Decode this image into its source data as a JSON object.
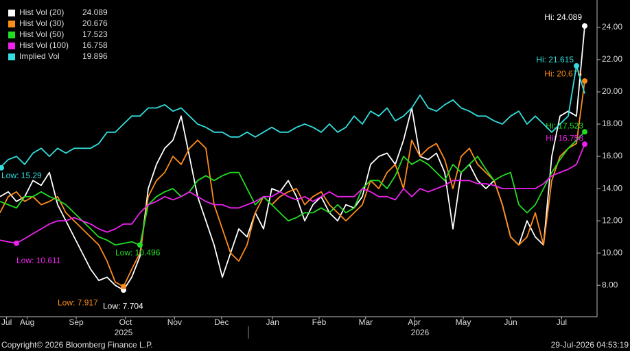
{
  "chart_data": {
    "type": "line",
    "xlim": [
      0,
      72.5
    ],
    "ylim": [
      6.05,
      25.7
    ],
    "yticks": [
      {
        "value": 8,
        "label": "8.00"
      },
      {
        "value": 10,
        "label": "10.00"
      },
      {
        "value": 12,
        "label": "12.00"
      },
      {
        "value": 14,
        "label": "14.00"
      },
      {
        "value": 16,
        "label": "16.00"
      },
      {
        "value": 18,
        "label": "18.00"
      },
      {
        "value": 20,
        "label": "20.00"
      },
      {
        "value": 22,
        "label": "22.00"
      },
      {
        "value": 24,
        "label": "24.00"
      }
    ],
    "xticks": [
      {
        "value": 0.8,
        "label": "Jul"
      },
      {
        "value": 3.3,
        "label": "Aug"
      },
      {
        "value": 9.25,
        "label": "Sep"
      },
      {
        "value": 15.25,
        "label": "Oct"
      },
      {
        "value": 21.2,
        "label": "Nov"
      },
      {
        "value": 26.9,
        "label": "Dec"
      },
      {
        "value": 33.1,
        "label": "Jan"
      },
      {
        "value": 38.75,
        "label": "Feb"
      },
      {
        "value": 44.4,
        "label": "Mar"
      },
      {
        "value": 50.3,
        "label": "Apr"
      },
      {
        "value": 56.25,
        "label": "May"
      },
      {
        "value": 62,
        "label": "Jun"
      },
      {
        "value": 68.2,
        "label": "Jul"
      }
    ],
    "year_labels": [
      {
        "value": 15,
        "label": "2025"
      },
      {
        "value": 51,
        "label": "2026"
      }
    ],
    "grid": false,
    "series": [
      {
        "name": "Hist Vol (20)",
        "color": "#ffffff",
        "hi_label": "Hi: 24.089",
        "lo_label": "Low: 7.704",
        "values": [
          13.5,
          13.8,
          13.2,
          13.5,
          14.5,
          14.2,
          15.0,
          13.0,
          12.0,
          11.0,
          10.0,
          9.0,
          8.3,
          8.5,
          8.0,
          7.704,
          8.5,
          9.8,
          14.0,
          15.5,
          16.5,
          17.0,
          18.5,
          16.0,
          13.5,
          12.0,
          10.5,
          8.5,
          10.0,
          11.5,
          11.0,
          12.5,
          11.5,
          14.0,
          13.8,
          14.5,
          13.5,
          12.0,
          13.0,
          13.5,
          12.5,
          12.0,
          13.0,
          12.8,
          13.5,
          15.5,
          16.0,
          16.2,
          15.5,
          17.0,
          19.0,
          16.0,
          15.8,
          16.2,
          15.0,
          11.5,
          15.0,
          15.5,
          14.5,
          14.0,
          14.5,
          13.0,
          11.0,
          10.5,
          12.0,
          11.0,
          10.5,
          16.0,
          18.5,
          18.8,
          18.5,
          24.089
        ]
      },
      {
        "name": "Hist Vol (30)",
        "color": "#ff8c1a",
        "hi_label": "Hi: 20.676",
        "lo_label": "Low: 7.917",
        "values": [
          12.5,
          13.5,
          13.8,
          13.2,
          13.5,
          13.0,
          13.2,
          13.5,
          12.5,
          12.0,
          11.5,
          11.0,
          10.5,
          9.5,
          8.2,
          7.917,
          9.0,
          10.0,
          13.5,
          14.5,
          15.0,
          16.0,
          15.5,
          16.5,
          17.0,
          16.5,
          13.0,
          11.5,
          10.0,
          9.5,
          10.5,
          12.5,
          13.5,
          13.0,
          13.5,
          13.8,
          14.0,
          13.0,
          13.5,
          13.8,
          13.0,
          12.5,
          12.0,
          12.5,
          13.0,
          14.5,
          14.0,
          15.0,
          15.5,
          14.0,
          17.0,
          16.0,
          16.5,
          16.8,
          15.8,
          14.0,
          16.0,
          16.5,
          15.5,
          15.0,
          14.5,
          13.0,
          11.0,
          10.5,
          11.0,
          12.5,
          10.5,
          14.5,
          16.0,
          16.5,
          16.8,
          20.676
        ]
      },
      {
        "name": "Hist Vol (50)",
        "color": "#22dd22",
        "hi_label": "Hi: 17.523",
        "lo_label": "Low: 10.496",
        "values": [
          13.2,
          13.0,
          12.8,
          13.5,
          13.5,
          13.8,
          13.5,
          13.3,
          13.0,
          12.5,
          12.0,
          11.5,
          11.0,
          10.8,
          10.5,
          10.6,
          10.7,
          10.496,
          13.0,
          13.5,
          13.8,
          14.0,
          13.5,
          13.8,
          14.5,
          14.8,
          14.5,
          14.8,
          15.0,
          15.0,
          14.0,
          13.0,
          13.5,
          13.0,
          12.5,
          12.0,
          12.2,
          12.5,
          12.5,
          12.8,
          12.5,
          13.0,
          12.5,
          12.8,
          14.0,
          14.5,
          14.5,
          14.0,
          14.8,
          16.0,
          15.5,
          15.8,
          15.5,
          15.0,
          14.5,
          15.5,
          15.0,
          15.5,
          16.0,
          15.2,
          14.5,
          14.8,
          15.0,
          13.0,
          12.5,
          13.0,
          14.0,
          15.0,
          15.8,
          16.5,
          17.0,
          17.523
        ]
      },
      {
        "name": "Hist Vol (100)",
        "color": "#ee22ee",
        "hi_label": "Hi: 16.758",
        "lo_label": "Low: 10.611",
        "values": [
          10.8,
          10.7,
          10.611,
          10.9,
          11.2,
          11.5,
          11.8,
          12.0,
          12.0,
          12.2,
          12.0,
          11.8,
          11.5,
          11.3,
          11.5,
          11.8,
          11.8,
          12.5,
          13.0,
          13.2,
          13.5,
          13.3,
          13.5,
          13.8,
          13.5,
          13.2,
          13.0,
          13.0,
          12.8,
          12.8,
          13.0,
          13.2,
          13.5,
          13.5,
          13.8,
          13.5,
          13.3,
          13.5,
          13.2,
          13.5,
          13.8,
          13.5,
          13.5,
          13.5,
          14.0,
          13.8,
          13.5,
          13.5,
          13.3,
          14.0,
          13.5,
          14.0,
          13.8,
          14.0,
          14.2,
          14.5,
          14.5,
          14.5,
          14.3,
          14.3,
          14.2,
          14.0,
          14.0,
          14.0,
          14.0,
          14.0,
          14.3,
          14.8,
          15.0,
          15.2,
          15.5,
          16.758
        ]
      },
      {
        "name": "Implied Vol",
        "color": "#33dddd",
        "hi_label": "Hi: 21.615",
        "lo_label": "Low: 15.29",
        "values": [
          15.29,
          15.8,
          16.0,
          15.5,
          16.2,
          16.5,
          16.0,
          16.5,
          16.2,
          16.5,
          16.5,
          16.5,
          16.8,
          17.5,
          17.5,
          18.0,
          18.5,
          18.5,
          19.0,
          19.0,
          19.2,
          18.8,
          19.0,
          18.5,
          18.0,
          17.8,
          17.5,
          17.5,
          17.2,
          17.2,
          17.5,
          17.2,
          17.5,
          17.8,
          17.5,
          17.5,
          17.8,
          18.0,
          17.8,
          17.5,
          18.0,
          17.5,
          17.8,
          18.5,
          18.0,
          18.8,
          18.5,
          19.0,
          18.2,
          18.5,
          19.0,
          19.8,
          19.0,
          18.8,
          19.2,
          19.5,
          19.0,
          18.8,
          18.5,
          18.5,
          18.2,
          18.0,
          18.5,
          18.8,
          18.0,
          18.5,
          18.0,
          17.5,
          18.0,
          18.5,
          21.615,
          19.896
        ]
      }
    ]
  },
  "footer": {
    "copyright": "Copyright© 2026 Bloomberg Finance L.P.",
    "timestamp": "29-Jul-2026 04:53:19"
  }
}
